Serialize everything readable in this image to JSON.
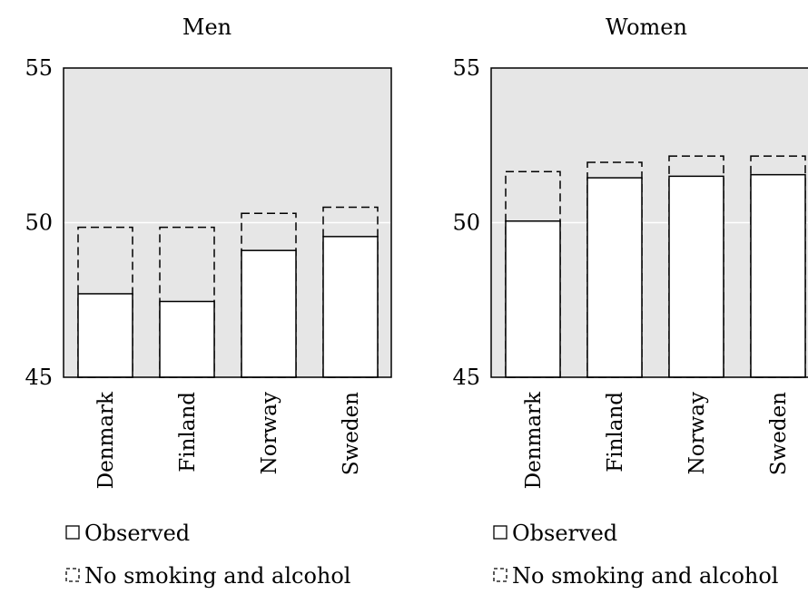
{
  "chart_data": [
    {
      "type": "bar",
      "title": "Men",
      "categories": [
        "Denmark",
        "Finland",
        "Norway",
        "Sweden"
      ],
      "series": [
        {
          "name": "Observed",
          "values": [
            47.7,
            47.45,
            49.1,
            49.55
          ]
        },
        {
          "name": "No smoking and alcohol",
          "values": [
            49.85,
            49.85,
            50.3,
            50.5
          ]
        }
      ],
      "ylim": [
        45,
        55
      ],
      "yticks": [
        "45",
        "50",
        "55"
      ],
      "grid": true,
      "legend_position": "bottom"
    },
    {
      "type": "bar",
      "title": "Women",
      "categories": [
        "Denmark",
        "Finland",
        "Norway",
        "Sweden"
      ],
      "series": [
        {
          "name": "Observed",
          "values": [
            50.05,
            51.45,
            51.5,
            51.55
          ]
        },
        {
          "name": "No smoking and alcohol",
          "values": [
            51.65,
            51.95,
            52.15,
            52.15
          ]
        }
      ],
      "ylim": [
        45,
        55
      ],
      "yticks": [
        "45",
        "50",
        "55"
      ],
      "grid": true,
      "legend_position": "bottom"
    }
  ],
  "colors": {
    "plot_background": "#e6e6e6",
    "bar_fill": "#ffffff",
    "bar_stroke": "#000000",
    "grid": "#ffffff"
  }
}
